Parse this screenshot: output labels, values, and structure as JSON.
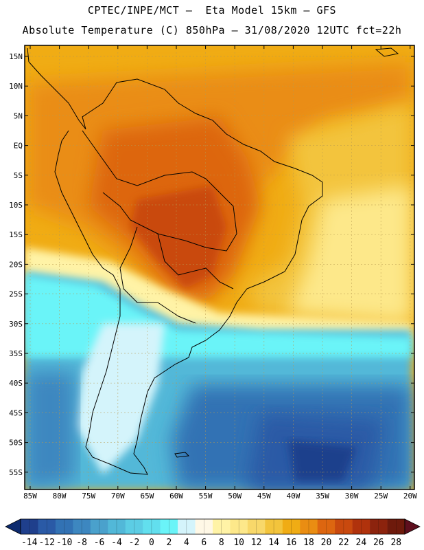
{
  "header": {
    "line1": "CPTEC/INPE/MCT –  Eta Model 15km – GFS",
    "line2": "Absolute Temperature (C) 850hPa – 31/08/2020 12UTC fct=22h"
  },
  "axes": {
    "lat_labels": [
      "15N",
      "10N",
      "5N",
      "EQ",
      "5S",
      "10S",
      "15S",
      "20S",
      "25S",
      "30S",
      "35S",
      "40S",
      "45S",
      "50S",
      "55S"
    ],
    "lon_labels": [
      "85W",
      "80W",
      "75W",
      "70W",
      "65W",
      "60W",
      "55W",
      "50W",
      "45W",
      "40W",
      "35W",
      "30W",
      "25W",
      "20W"
    ]
  },
  "colorbar": {
    "ticks": [
      "-14",
      "-12",
      "-10",
      "-8",
      "-6",
      "-4",
      "-2",
      "0",
      "2",
      "4",
      "6",
      "8",
      "10",
      "12",
      "14",
      "16",
      "18",
      "20",
      "22",
      "24",
      "26",
      "28"
    ],
    "colors": [
      "#1f3f8c",
      "#2a5aa6",
      "#3272b4",
      "#3d87c0",
      "#4aa1cc",
      "#52b8d8",
      "#5ccde4",
      "#62dfee",
      "#6af4f8",
      "#d4f4fb",
      "#fff8e6",
      "#fff3a6",
      "#fde88a",
      "#f8d86a",
      "#f3c43c",
      "#f0ac14",
      "#ea8d12",
      "#dd6610",
      "#c9490e",
      "#b0320c",
      "#8c230d",
      "#6e1a0c"
    ]
  },
  "colors": {
    "background": "#ffffff",
    "frame": "#000000"
  }
}
